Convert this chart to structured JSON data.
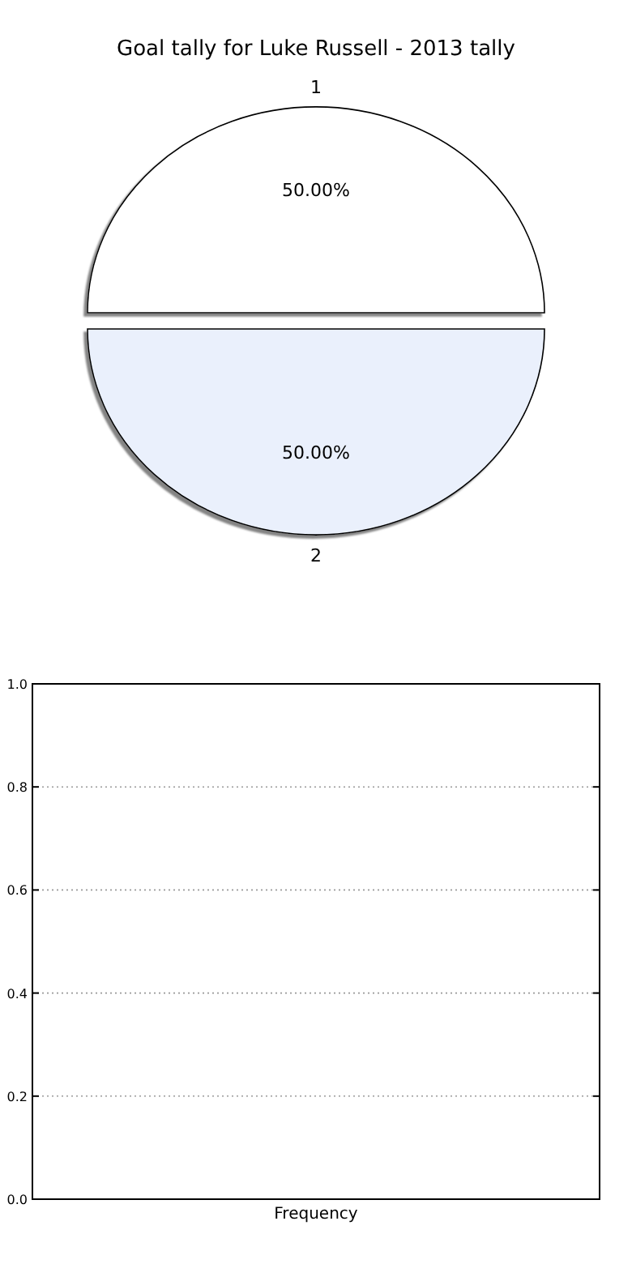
{
  "chart_data": [
    {
      "type": "pie",
      "title": "Goal tally for Luke Russell - 2013 tally",
      "categories": [
        "1",
        "2"
      ],
      "values": [
        50,
        50
      ],
      "colors": [
        "#ffffff",
        "#eaf0fc"
      ],
      "value_labels": [
        "50.00%",
        "50.00%"
      ]
    },
    {
      "type": "bar",
      "categories": [
        "Frequency"
      ],
      "values": [
        0
      ],
      "ylim": [
        0,
        1
      ],
      "yticks": [
        {
          "value": 0,
          "label": "0.0"
        },
        {
          "value": 0.2,
          "label": "0.2"
        },
        {
          "value": 0.4,
          "label": "0.4"
        },
        {
          "value": 0.6,
          "label": "0.6"
        },
        {
          "value": 0.8,
          "label": "0.8"
        },
        {
          "value": 1,
          "label": "1.0"
        }
      ],
      "grid": "y"
    }
  ]
}
